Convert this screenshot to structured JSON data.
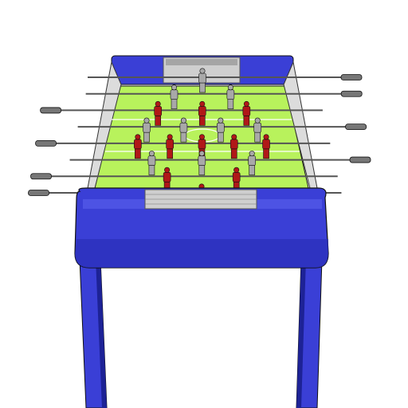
{
  "scene": {
    "subject": "foosball-table",
    "colors": {
      "body_blue": "#3a3fd6",
      "body_blue_dark": "#1d2296",
      "body_blue_light": "#6a70f0",
      "field_green": "#b8f25c",
      "field_line": "#ffffff",
      "rod_metal": "#555555",
      "handle_grey": "#777777",
      "team_red": "#b01818",
      "team_grey": "#a8a8a8",
      "goal_grey": "#9a9a9a",
      "outline": "#111111"
    },
    "rods": [
      {
        "team": "grey",
        "players": 1,
        "handle_side": "right"
      },
      {
        "team": "grey",
        "players": 2,
        "handle_side": "right"
      },
      {
        "team": "red",
        "players": 3,
        "handle_side": "left"
      },
      {
        "team": "grey",
        "players": 4,
        "handle_side": "right"
      },
      {
        "team": "red",
        "players": 5,
        "handle_side": "left"
      },
      {
        "team": "grey",
        "players": 3,
        "handle_side": "right"
      },
      {
        "team": "red",
        "players": 2,
        "handle_side": "left"
      },
      {
        "team": "red",
        "players": 1,
        "handle_side": "left"
      }
    ]
  }
}
